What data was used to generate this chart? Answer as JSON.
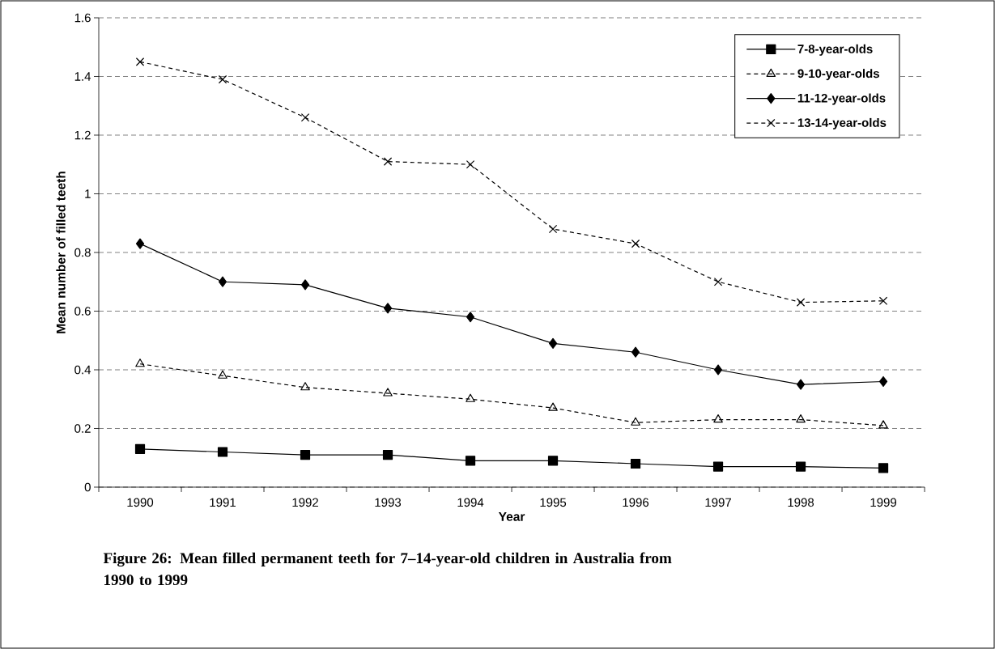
{
  "chart_data": {
    "type": "line",
    "title": "Figure 26:  Mean filled permanent teeth for 7–14-year-old children in Australia from 1990 to 1999",
    "xlabel": "Year",
    "ylabel": "Mean number of filled teeth",
    "categories": [
      "1990",
      "1991",
      "1992",
      "1993",
      "1994",
      "1995",
      "1996",
      "1997",
      "1998",
      "1999"
    ],
    "series": [
      {
        "name": "7-8-year-olds",
        "color": "#000000",
        "marker": "square",
        "line_style": "solid",
        "values": [
          0.13,
          0.12,
          0.11,
          0.11,
          0.09,
          0.09,
          0.08,
          0.07,
          0.07,
          0.065
        ]
      },
      {
        "name": "9-10-year-olds",
        "color": "#000000",
        "marker": "triangle",
        "line_style": "dashed",
        "values": [
          0.42,
          0.38,
          0.34,
          0.32,
          0.3,
          0.27,
          0.22,
          0.23,
          0.23,
          0.21
        ]
      },
      {
        "name": "11-12-year-olds",
        "color": "#000000",
        "marker": "diamond",
        "line_style": "solid",
        "values": [
          0.83,
          0.7,
          0.69,
          0.61,
          0.58,
          0.49,
          0.46,
          0.4,
          0.35,
          0.36
        ]
      },
      {
        "name": "13-14-year-olds",
        "color": "#000000",
        "marker": "cross",
        "line_style": "dashed",
        "values": [
          1.45,
          1.39,
          1.26,
          1.11,
          1.1,
          0.88,
          0.83,
          0.7,
          0.63,
          0.635
        ]
      }
    ],
    "ylim": [
      0,
      1.6
    ],
    "yticks": [
      0,
      0.2,
      0.4,
      0.6,
      0.8,
      1,
      1.2,
      1.4,
      1.6
    ],
    "grid": "y",
    "legend": "top right"
  }
}
